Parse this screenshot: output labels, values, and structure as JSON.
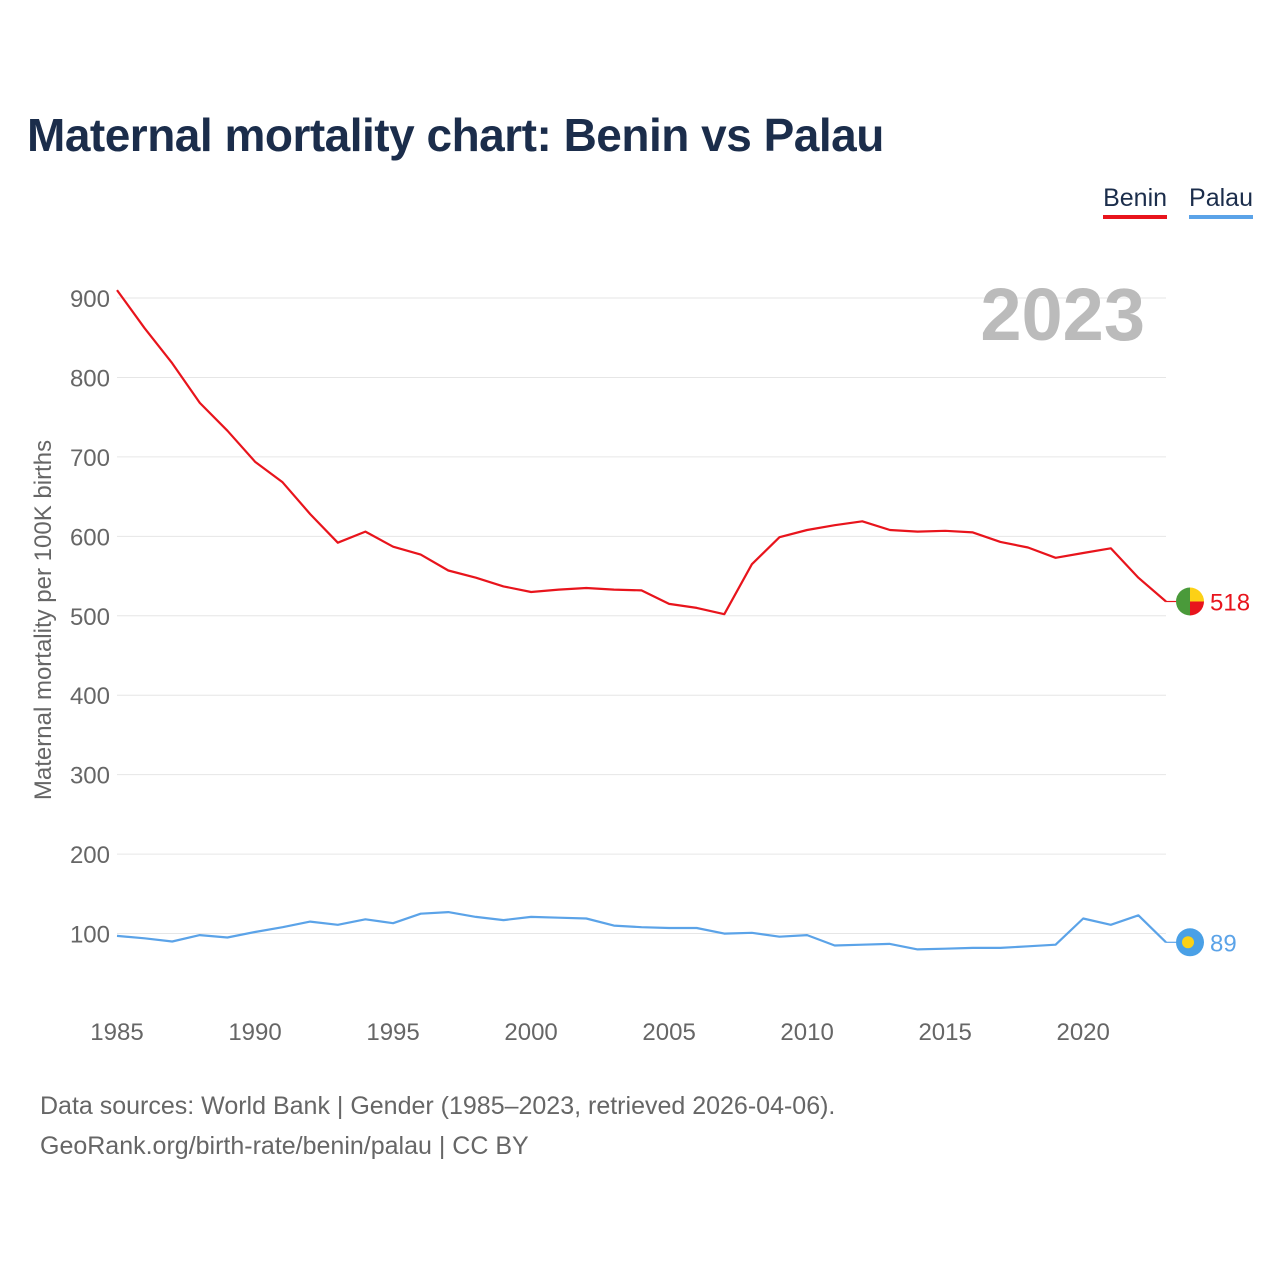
{
  "title": "Maternal mortality chart: Benin vs Palau",
  "legend": {
    "benin": "Benin",
    "palau": "Palau"
  },
  "year_label": "2023",
  "colors": {
    "benin": "#e8141c",
    "palau": "#5ba3e8",
    "title": "#1b2d4b",
    "grid": "#e6e6e6",
    "axis_text": "#666666",
    "year": "#bbbbbb"
  },
  "footer": {
    "line1": "Data sources: World Bank | Gender (1985–2023, retrieved 2026-04-06).",
    "line2": "GeoRank.org/birth-rate/benin/palau | CC BY"
  },
  "chart_data": {
    "type": "line",
    "title": "Maternal mortality chart: Benin vs Palau",
    "ylabel": "Maternal mortality per 100K births",
    "xlabel": "",
    "xlim": [
      1985,
      2023
    ],
    "ylim": [
      0,
      900
    ],
    "xticks": [
      1985,
      1990,
      1995,
      2000,
      2005,
      2010,
      2015,
      2020
    ],
    "yticks": [
      100,
      200,
      300,
      400,
      500,
      600,
      700,
      800,
      900
    ],
    "x": [
      1985,
      1986,
      1987,
      1988,
      1989,
      1990,
      1991,
      1992,
      1993,
      1994,
      1995,
      1996,
      1997,
      1998,
      1999,
      2000,
      2001,
      2002,
      2003,
      2004,
      2005,
      2006,
      2007,
      2008,
      2009,
      2010,
      2011,
      2012,
      2013,
      2014,
      2015,
      2016,
      2017,
      2018,
      2019,
      2020,
      2021,
      2022,
      2023
    ],
    "series": [
      {
        "name": "Benin",
        "color": "#e8141c",
        "end_label": "518",
        "values": [
          910,
          862,
          818,
          768,
          733,
          694,
          668,
          628,
          592,
          606,
          587,
          577,
          557,
          548,
          537,
          530,
          533,
          535,
          533,
          532,
          515,
          510,
          502,
          565,
          599,
          608,
          614,
          619,
          608,
          606,
          607,
          605,
          593,
          586,
          573,
          579,
          585,
          548,
          518
        ]
      },
      {
        "name": "Palau",
        "color": "#5ba3e8",
        "end_label": "89",
        "values": [
          97,
          94,
          90,
          98,
          95,
          102,
          108,
          115,
          111,
          118,
          113,
          125,
          127,
          121,
          117,
          121,
          120,
          119,
          110,
          108,
          107,
          107,
          100,
          101,
          96,
          98,
          85,
          86,
          87,
          80,
          81,
          82,
          82,
          84,
          86,
          119,
          111,
          123,
          89
        ]
      }
    ]
  }
}
